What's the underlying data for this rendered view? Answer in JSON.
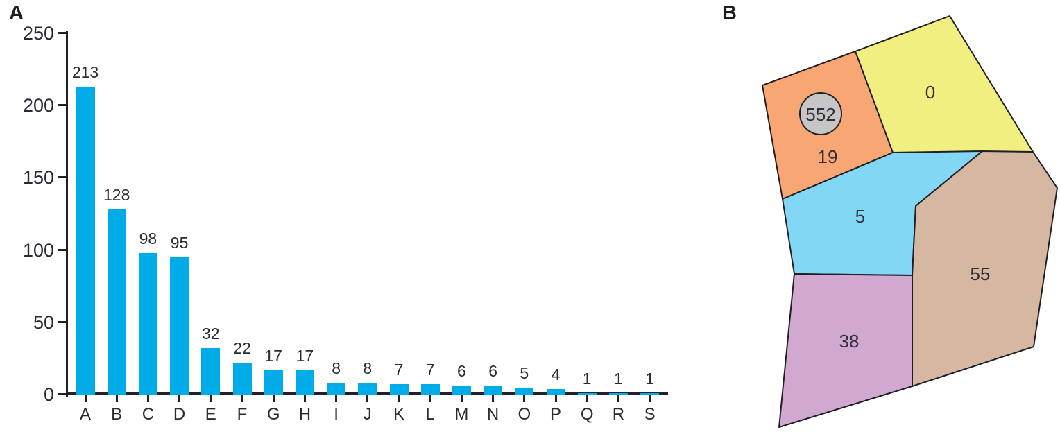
{
  "panels": {
    "a_label": "A",
    "b_label": "B"
  },
  "colors": {
    "bar": "#00ACE8",
    "axis": "#231f26",
    "text": "#2c2935",
    "map_stroke": "#201e24"
  },
  "chart_data": {
    "type": "bar",
    "categories": [
      "A",
      "B",
      "C",
      "D",
      "E",
      "F",
      "G",
      "H",
      "I",
      "J",
      "K",
      "L",
      "M",
      "N",
      "O",
      "P",
      "Q",
      "R",
      "S"
    ],
    "values": [
      213,
      128,
      98,
      95,
      32,
      22,
      17,
      17,
      8,
      8,
      7,
      7,
      6,
      6,
      5,
      4,
      1,
      1,
      1
    ],
    "value_labels_shown": true,
    "ylim": [
      0,
      250
    ],
    "yticks": [
      0,
      50,
      100,
      150,
      200,
      250
    ],
    "bar_color": "#00ACE8",
    "grid": "off",
    "legend": "none"
  },
  "map": {
    "regions": [
      {
        "id": "orange",
        "label": "19",
        "color": "#F7A674"
      },
      {
        "id": "yellow",
        "label": "0",
        "color": "#F2EF81"
      },
      {
        "id": "blue",
        "label": "5",
        "color": "#82D7F4"
      },
      {
        "id": "tan",
        "label": "55",
        "color": "#D6B7A2"
      },
      {
        "id": "purple",
        "label": "38",
        "color": "#D1A8CF"
      }
    ],
    "badge": {
      "label": "552",
      "color": "#C7C6C7"
    }
  }
}
